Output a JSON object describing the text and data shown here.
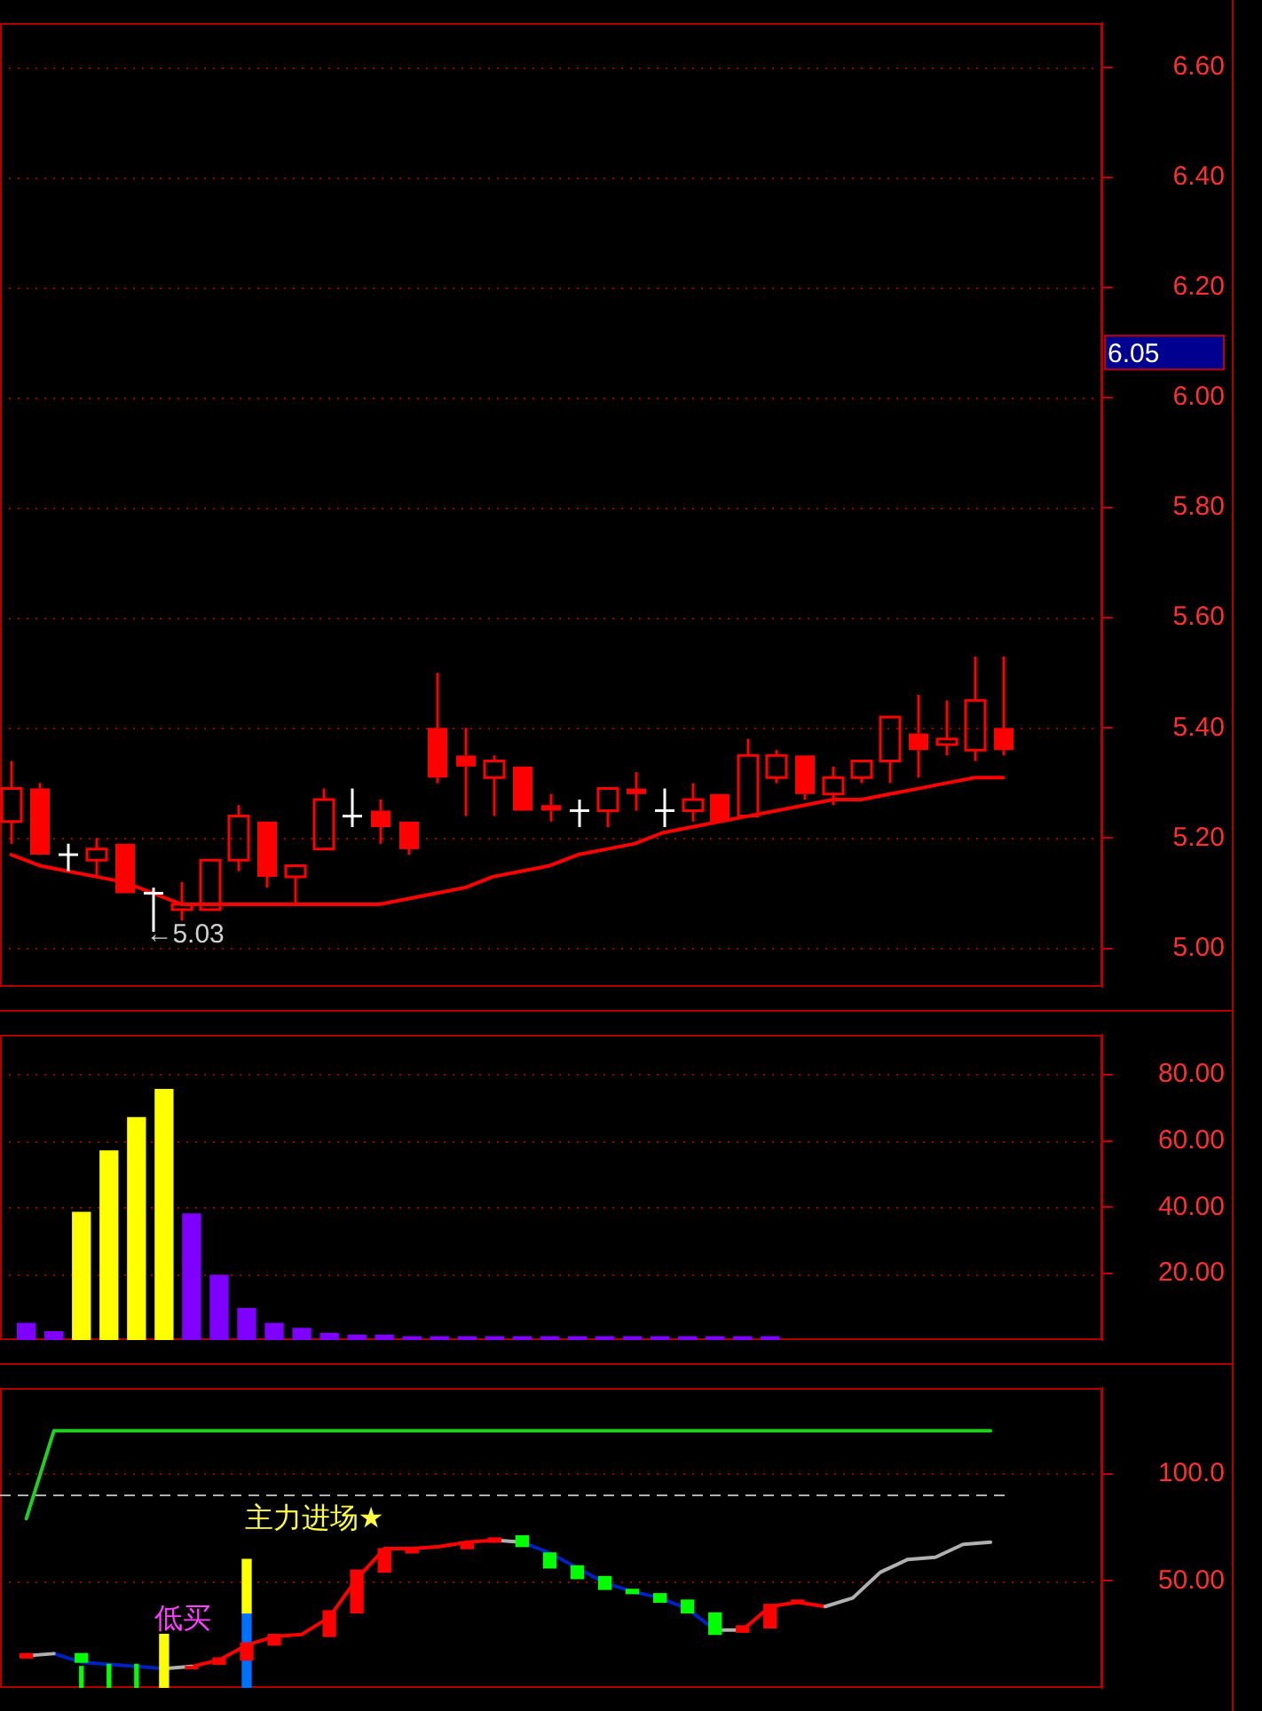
{
  "chart_data": [
    {
      "type": "candlestick",
      "tick_labels": "y",
      "grid": "y",
      "categories": [
        null,
        null,
        null,
        null,
        null,
        null,
        null,
        null,
        null,
        null,
        null,
        null,
        null,
        null,
        null,
        null,
        null,
        null,
        null,
        null,
        null,
        null,
        null,
        null,
        null,
        null,
        null,
        null,
        null,
        null,
        null,
        null,
        null,
        null,
        null,
        null
      ],
      "ohlc": [
        [
          5.23,
          5.34,
          5.19,
          5.29
        ],
        [
          5.29,
          5.3,
          5.17,
          5.17
        ],
        [
          5.17,
          5.19,
          5.14,
          5.17
        ],
        [
          5.16,
          5.2,
          5.13,
          5.18
        ],
        [
          5.19,
          5.19,
          5.1,
          5.1
        ],
        [
          5.1,
          5.11,
          5.03,
          5.1
        ],
        [
          5.07,
          5.12,
          5.05,
          5.08
        ],
        [
          5.07,
          5.16,
          5.07,
          5.16
        ],
        [
          5.16,
          5.26,
          5.14,
          5.24
        ],
        [
          5.23,
          5.23,
          5.11,
          5.13
        ],
        [
          5.13,
          5.15,
          5.08,
          5.15
        ],
        [
          5.18,
          5.29,
          5.18,
          5.27
        ],
        [
          5.24,
          5.29,
          5.22,
          5.24
        ],
        [
          5.25,
          5.27,
          5.19,
          5.22
        ],
        [
          5.23,
          5.23,
          5.17,
          5.18
        ],
        [
          5.4,
          5.5,
          5.3,
          5.31
        ],
        [
          5.35,
          5.4,
          5.24,
          5.33
        ],
        [
          5.31,
          5.35,
          5.24,
          5.34
        ],
        [
          5.33,
          5.33,
          5.25,
          5.25
        ],
        [
          5.26,
          5.28,
          5.23,
          5.25
        ],
        [
          5.25,
          5.27,
          5.22,
          5.25
        ],
        [
          5.25,
          5.29,
          5.22,
          5.29
        ],
        [
          5.29,
          5.32,
          5.25,
          5.28
        ],
        [
          5.25,
          5.29,
          5.22,
          5.25
        ],
        [
          5.25,
          5.3,
          5.23,
          5.27
        ],
        [
          5.28,
          5.28,
          5.23,
          5.23
        ],
        [
          5.24,
          5.38,
          5.24,
          5.35
        ],
        [
          5.31,
          5.36,
          5.3,
          5.35
        ],
        [
          5.35,
          5.35,
          5.27,
          5.28
        ],
        [
          5.28,
          5.33,
          5.26,
          5.31
        ],
        [
          5.31,
          5.34,
          5.3,
          5.34
        ],
        [
          5.34,
          5.42,
          5.3,
          5.42
        ],
        [
          5.39,
          5.46,
          5.31,
          5.36
        ],
        [
          5.37,
          5.45,
          5.35,
          5.38
        ],
        [
          5.36,
          5.53,
          5.34,
          5.45
        ],
        [
          5.4,
          5.53,
          5.35,
          5.36
        ]
      ],
      "series": [
        {
          "type": "line",
          "color": "#ff0000",
          "values": [
            5.17,
            5.15,
            5.14,
            5.13,
            5.12,
            5.1,
            5.08,
            5.08,
            5.08,
            5.08,
            5.08,
            5.08,
            5.08,
            5.08,
            5.09,
            5.1,
            5.11,
            5.13,
            5.14,
            5.15,
            5.17,
            5.18,
            5.19,
            5.21,
            5.22,
            5.23,
            5.24,
            5.25,
            5.26,
            5.27,
            5.27,
            5.28,
            5.29,
            5.3,
            5.31,
            5.31
          ]
        }
      ],
      "ylim": [
        4.93,
        6.68
      ],
      "yticks": [
        {
          "value": 5,
          "label": "5.00"
        },
        {
          "value": 5.2,
          "label": "5.20"
        },
        {
          "value": 5.4,
          "label": "5.40"
        },
        {
          "value": 5.6,
          "label": "5.60"
        },
        {
          "value": 5.8,
          "label": "5.80"
        },
        {
          "value": 6,
          "label": "6.00"
        },
        {
          "value": 6.2,
          "label": "6.20"
        },
        {
          "value": 6.4,
          "label": "6.40"
        },
        {
          "value": 6.6,
          "label": "6.60"
        }
      ],
      "annotations": [
        "←5.03",
        "6.05"
      ]
    },
    {
      "type": "bar",
      "tick_labels": "y",
      "grid": "y",
      "categories": [
        null,
        null,
        null,
        null,
        null,
        null,
        null,
        null,
        null,
        null,
        null,
        null,
        null,
        null,
        null,
        null,
        null,
        null,
        null,
        null,
        null,
        null,
        null,
        null,
        null,
        null,
        null,
        null,
        null,
        null,
        null,
        null,
        null,
        null,
        null,
        null
      ],
      "values": [
        5,
        2.5,
        38.5,
        57,
        67,
        75.5,
        38,
        19.5,
        9.5,
        5,
        3.5,
        2,
        1.5,
        1.5,
        1,
        1,
        1,
        1,
        1,
        1,
        1,
        1,
        1,
        1,
        1,
        1,
        1,
        1,
        null,
        null,
        null,
        null,
        null,
        null,
        null,
        null
      ],
      "colors": [
        "#8000ff",
        "#8000ff",
        "#ffff00",
        "#ffff00",
        "#ffff00",
        "#ffff00",
        "#8000ff",
        "#8000ff",
        "#8000ff",
        "#8000ff",
        "#8000ff",
        "#8000ff",
        "#8000ff",
        "#8000ff",
        "#8000ff",
        "#8000ff",
        "#8000ff",
        "#8000ff",
        "#8000ff",
        "#8000ff",
        "#8000ff",
        "#8000ff",
        "#8000ff",
        "#8000ff",
        "#8000ff",
        "#8000ff",
        "#8000ff",
        "#8000ff",
        "#8000ff",
        "#8000ff",
        "#8000ff",
        "#8000ff",
        "#8000ff",
        "#8000ff",
        "#8000ff",
        "#8000ff"
      ],
      "ylim": [
        0,
        92
      ],
      "yticks": [
        {
          "value": 20,
          "label": "20.00"
        },
        {
          "value": 40,
          "label": "40.00"
        },
        {
          "value": 60,
          "label": "60.00"
        },
        {
          "value": 80,
          "label": "80.00"
        }
      ]
    },
    {
      "type": "line",
      "tick_labels": "y",
      "grid": "y",
      "categories": [
        null,
        null,
        null,
        null,
        null,
        null,
        null,
        null,
        null,
        null,
        null,
        null,
        null,
        null,
        null,
        null,
        null,
        null,
        null,
        null,
        null,
        null,
        null,
        null,
        null,
        null,
        null,
        null,
        null,
        null,
        null,
        null,
        null,
        null,
        null,
        null
      ],
      "series": [
        {
          "type": "line",
          "color": "#20d020",
          "values": [
            79,
            120,
            120,
            120,
            120,
            120,
            120,
            120,
            120,
            120,
            120,
            120,
            120,
            120,
            120,
            120,
            120,
            120,
            120,
            120,
            120,
            120,
            120,
            120,
            120,
            120,
            120,
            120,
            120,
            120,
            120,
            120,
            120,
            120,
            120,
            120
          ]
        },
        {
          "type": "line",
          "color": "#b0b0b0",
          "values": [
            15,
            16,
            null,
            null,
            null,
            9,
            10,
            null,
            null,
            null,
            null,
            null,
            null,
            null,
            null,
            null,
            null,
            69,
            68,
            null,
            null,
            null,
            null,
            null,
            null,
            27,
            27,
            null,
            null,
            38,
            42,
            54,
            60,
            61,
            67,
            68
          ]
        },
        {
          "type": "line",
          "color": "#0020c0",
          "values": [
            null,
            16,
            12,
            11,
            10,
            9,
            null,
            null,
            null,
            null,
            null,
            null,
            null,
            null,
            null,
            null,
            null,
            null,
            68,
            63,
            56,
            49,
            45,
            42,
            37,
            27,
            null,
            null,
            null,
            null,
            null,
            null,
            null,
            null,
            null,
            null
          ]
        },
        {
          "type": "line",
          "color": "#ff0000",
          "values": [
            null,
            null,
            null,
            null,
            null,
            null,
            10,
            13,
            20,
            24,
            25,
            33,
            51,
            65,
            65,
            66,
            68,
            69,
            null,
            null,
            null,
            null,
            null,
            null,
            null,
            null,
            27,
            38,
            40,
            38,
            null,
            null,
            null,
            null,
            null,
            null
          ]
        },
        {
          "type": "bar",
          "color": "#ff0000",
          "values": [
            2,
            null,
            null,
            null,
            null,
            null,
            1,
            3,
            8,
            5,
            null,
            12,
            20,
            11,
            2,
            null,
            3,
            2,
            null,
            null,
            null,
            null,
            null,
            null,
            null,
            null,
            3,
            11,
            1,
            null,
            null,
            null,
            null,
            null,
            null,
            null
          ],
          "base": [
            14,
            null,
            null,
            null,
            null,
            null,
            9,
            11,
            13,
            20,
            null,
            24,
            35,
            54,
            63,
            null,
            65,
            68,
            null,
            null,
            null,
            null,
            null,
            null,
            null,
            null,
            26,
            28,
            40,
            null,
            null,
            null,
            null,
            null,
            null,
            null
          ]
        },
        {
          "type": "bar",
          "color": "#00ff00",
          "values": [
            null,
            null,
            4,
            null,
            null,
            null,
            null,
            null,
            null,
            null,
            null,
            null,
            null,
            null,
            null,
            null,
            null,
            null,
            5,
            7,
            6,
            6,
            2,
            4,
            6,
            10,
            null,
            null,
            null,
            null,
            null,
            null,
            null,
            null,
            null,
            null
          ],
          "base": [
            null,
            null,
            12,
            null,
            null,
            null,
            null,
            null,
            null,
            null,
            null,
            null,
            null,
            null,
            null,
            null,
            null,
            null,
            66,
            56,
            51,
            46,
            44,
            40,
            35,
            25,
            null,
            null,
            null,
            null,
            null,
            null,
            null,
            null,
            null,
            null
          ]
        },
        {
          "type": "bar",
          "color": "#00ff00",
          "values": [
            null,
            null,
            10,
            11,
            11,
            null,
            null,
            null,
            null,
            null,
            null,
            null,
            null,
            null,
            null,
            null,
            null,
            null,
            null,
            null,
            null,
            null,
            null,
            null,
            null,
            null,
            null,
            null,
            null,
            null,
            null,
            null,
            null,
            null,
            null,
            null
          ]
        },
        {
          "type": "bar",
          "color": "#ffff00",
          "values": [
            null,
            null,
            null,
            null,
            null,
            25,
            null,
            null,
            25,
            null,
            null,
            null,
            null,
            null,
            null,
            null,
            null,
            null,
            null,
            null,
            null,
            null,
            null,
            null,
            null,
            null,
            null,
            null,
            null,
            null,
            null,
            null,
            null,
            null,
            null,
            null
          ],
          "base": [
            null,
            null,
            null,
            null,
            null,
            0,
            null,
            null,
            35,
            null,
            null,
            null,
            null,
            null,
            null,
            null,
            null,
            null,
            null,
            null,
            null,
            null,
            null,
            null,
            null,
            null,
            null,
            null,
            null,
            null,
            null,
            null,
            null,
            null,
            null,
            null
          ]
        },
        {
          "type": "bar",
          "color": "#0070ff",
          "values": [
            null,
            null,
            null,
            null,
            null,
            null,
            null,
            null,
            35,
            null,
            null,
            null,
            null,
            null,
            null,
            null,
            null,
            null,
            null,
            null,
            null,
            null,
            null,
            null,
            null,
            null,
            null,
            null,
            null,
            null,
            null,
            null,
            null,
            null,
            null,
            null
          ]
        }
      ],
      "ylim": [
        0,
        140
      ],
      "yticks": [
        {
          "value": 50,
          "label": "50.00"
        },
        {
          "value": 100,
          "label": "100.0"
        }
      ],
      "ref_lines": [
        {
          "axis": "y",
          "value": 90,
          "color": "#b0b0b0",
          "line_style": "dashed"
        }
      ],
      "annotations": [
        "主力进场★",
        "低买"
      ]
    }
  ]
}
